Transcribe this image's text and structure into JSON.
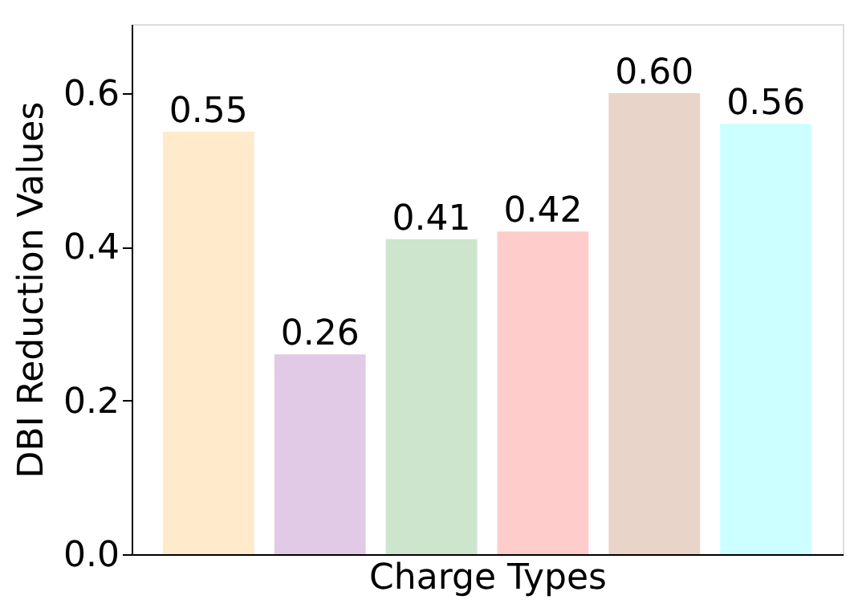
{
  "chart_data": {
    "type": "bar",
    "xlabel": "Charge Types",
    "ylabel": "DBI Reduction Values",
    "categories": [
      null,
      null,
      null,
      null,
      null,
      null
    ],
    "values": [
      0.55,
      0.26,
      0.41,
      0.42,
      0.6,
      0.56
    ],
    "value_labels": [
      "0.55",
      "0.26",
      "0.41",
      "0.42",
      "0.60",
      "0.56"
    ],
    "colors": [
      "#ffebcc",
      "#e0cae6",
      "#cce5cc",
      "#ffcccc",
      "#e8d4c8",
      "#ccffff"
    ],
    "ylim": [
      0,
      0.69
    ],
    "yticks": [
      {
        "value": 0,
        "label": "0.0"
      },
      {
        "value": 0.2,
        "label": "0.2"
      },
      {
        "value": 0.4,
        "label": "0.4"
      },
      {
        "value": 0.6,
        "label": "0.6"
      }
    ],
    "grid": false,
    "tick_labels": "y"
  }
}
